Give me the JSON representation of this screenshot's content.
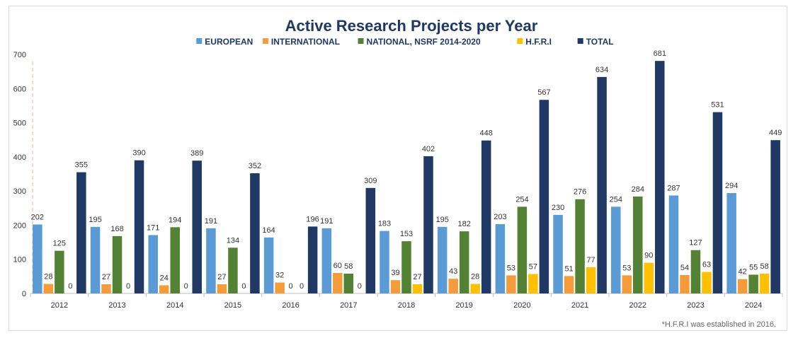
{
  "chart_data": {
    "type": "bar",
    "title": "Active Research Projects per Year",
    "note": "*H.F.R.I was established in 2016.",
    "categories": [
      "2012",
      "2013",
      "2014",
      "2015",
      "2016",
      "2017",
      "2018",
      "2019",
      "2020",
      "2021",
      "2022",
      "2023",
      "2024"
    ],
    "ylim": [
      0,
      700
    ],
    "yticks": [
      0,
      100,
      200,
      300,
      400,
      500,
      600,
      700
    ],
    "grid": false,
    "legend_position": "top",
    "series": [
      {
        "name": "EUROPEAN",
        "color": "#5b9bd5",
        "values": [
          202,
          195,
          171,
          191,
          164,
          191,
          183,
          195,
          203,
          230,
          254,
          287,
          294
        ]
      },
      {
        "name": "INTERNATIONAL",
        "color": "#f39c39",
        "values": [
          28,
          27,
          24,
          27,
          32,
          60,
          39,
          43,
          53,
          51,
          53,
          54,
          42
        ]
      },
      {
        "name": "NATIONAL, NSRF 2014-2020",
        "color": "#548235",
        "values": [
          125,
          168,
          194,
          134,
          0,
          58,
          153,
          182,
          254,
          276,
          284,
          127,
          55
        ]
      },
      {
        "name": "H.F.R.I",
        "color": "#ffc000",
        "values": [
          0,
          0,
          0,
          0,
          0,
          0,
          27,
          28,
          57,
          77,
          90,
          63,
          58
        ]
      },
      {
        "name": "TOTAL",
        "color": "#1f3864",
        "values": [
          355,
          390,
          389,
          352,
          196,
          309,
          402,
          448,
          567,
          634,
          681,
          531,
          449
        ]
      }
    ],
    "value_labels": [
      [
        "202",
        "195",
        "171",
        "191",
        "164",
        "191",
        "183",
        "195",
        "203",
        "230",
        "254",
        "287",
        "294"
      ],
      [
        "28",
        "27",
        "24",
        "27",
        "32",
        "60",
        "39",
        "43",
        "53",
        "51",
        "53",
        "54",
        "42"
      ],
      [
        "125",
        "168",
        "194",
        "134",
        "0",
        "58",
        "153",
        "182",
        "254",
        "276",
        "284",
        "127",
        "55"
      ],
      [
        "0",
        "0",
        "0",
        "0",
        "0",
        "0",
        "27",
        "28",
        "57",
        "77",
        "90",
        "63",
        "58"
      ],
      [
        "355",
        "390",
        "389",
        "352",
        "196",
        "309",
        "402",
        "448",
        "567",
        "634",
        "681",
        "531",
        "449"
      ]
    ]
  }
}
